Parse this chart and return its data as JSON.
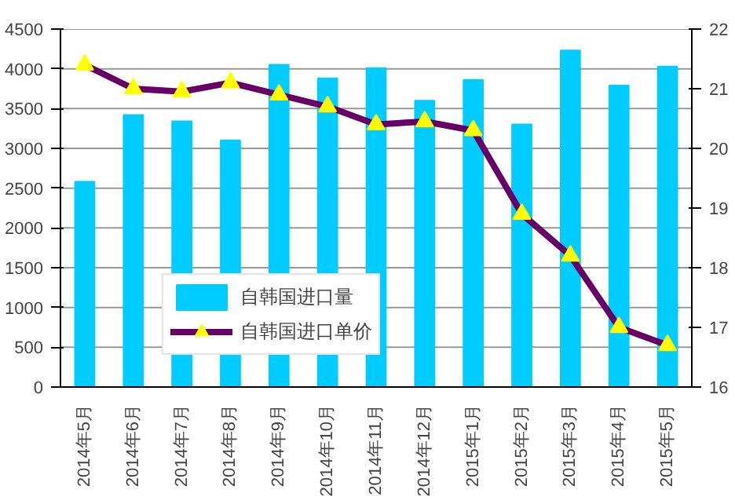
{
  "chart_data": {
    "type": "bar",
    "categories": [
      "2014年5月",
      "2014年6月",
      "2014年7月",
      "2014年8月",
      "2014年9月",
      "2014年10月",
      "2014年11月",
      "2014年12月",
      "2015年1月",
      "2015年2月",
      "2015年3月",
      "2015年4月",
      "2015年5月"
    ],
    "series": [
      {
        "name": "自韩国进口量",
        "color": "#00ccff",
        "values": [
          2580,
          3420,
          3340,
          3100,
          4050,
          3880,
          4010,
          3600,
          3860,
          3300,
          4230,
          3790,
          4030
        ]
      },
      {
        "name": "自韩国进口单价",
        "type": "line",
        "axis": "y2",
        "color": "#660066",
        "marker": "triangle",
        "values": [
          21.4,
          21.0,
          20.95,
          21.1,
          20.9,
          20.7,
          20.4,
          20.45,
          20.3,
          18.9,
          18.2,
          17.0,
          16.7
        ]
      }
    ],
    "ylim": [
      0,
      4500
    ],
    "yticks": [
      0,
      500,
      1000,
      1500,
      2000,
      2500,
      3000,
      3500,
      4000,
      4500
    ],
    "y2lim": [
      16,
      22
    ],
    "y2ticks": [
      16,
      17,
      18,
      19,
      20,
      21,
      22
    ],
    "grid": "y",
    "legend": "bottom"
  }
}
